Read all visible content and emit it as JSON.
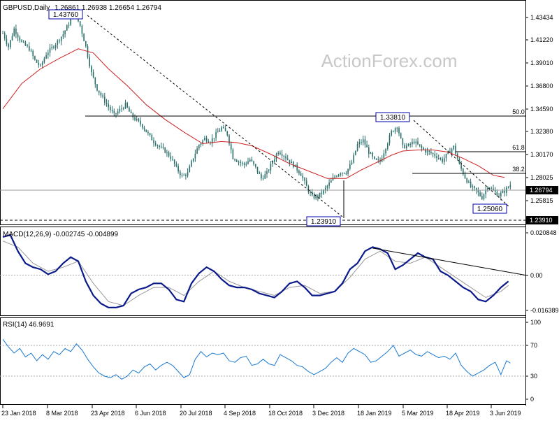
{
  "header": {
    "symbol": "GBPUSD,Daily",
    "ohlc": "1.26861 1.26938 1.26654 1.26794"
  },
  "watermark": "ActionForex.com",
  "chart_data": [
    {
      "type": "candlestick",
      "x_dates": [
        "23 Jan 2018",
        "8 Mar 2018",
        "23 Apr 2018",
        "6 Jun 2018",
        "20 Jul 2018",
        "4 Sep 2018",
        "18 Oct 2018",
        "3 Dec 2018",
        "18 Jan 2019",
        "5 Mar 2019",
        "18 Apr 2019",
        "3 Jun 2019"
      ],
      "y_ticks": [
        "1.43434",
        "1.41220",
        "1.39010",
        "1.36800",
        "1.34590",
        "1.32380",
        "1.30170",
        "1.28025",
        "1.25815"
      ],
      "ylim": [
        1.237,
        1.448
      ],
      "current_price": "1.26794",
      "extra_price": "1.23910",
      "price_path": [
        [
          0,
          1.418
        ],
        [
          3,
          1.405
        ],
        [
          6,
          1.422
        ],
        [
          10,
          1.409
        ],
        [
          14,
          1.403
        ],
        [
          17,
          1.392
        ],
        [
          20,
          1.386
        ],
        [
          23,
          1.398
        ],
        [
          26,
          1.404
        ],
        [
          29,
          1.41
        ],
        [
          32,
          1.417
        ],
        [
          35,
          1.427
        ],
        [
          38,
          1.4376
        ],
        [
          41,
          1.425
        ],
        [
          44,
          1.405
        ],
        [
          47,
          1.38
        ],
        [
          50,
          1.365
        ],
        [
          53,
          1.356
        ],
        [
          56,
          1.348
        ],
        [
          59,
          1.34
        ],
        [
          62,
          1.345
        ],
        [
          65,
          1.35
        ],
        [
          68,
          1.34
        ],
        [
          71,
          1.335
        ],
        [
          74,
          1.33
        ],
        [
          77,
          1.322
        ],
        [
          80,
          1.315
        ],
        [
          83,
          1.31
        ],
        [
          86,
          1.306
        ],
        [
          89,
          1.3
        ],
        [
          92,
          1.29
        ],
        [
          95,
          1.282
        ],
        [
          98,
          1.285
        ],
        [
          101,
          1.3
        ],
        [
          104,
          1.312
        ],
        [
          107,
          1.318
        ],
        [
          110,
          1.315
        ],
        [
          113,
          1.322
        ],
        [
          116,
          1.328
        ],
        [
          119,
          1.322
        ],
        [
          122,
          1.3
        ],
        [
          125,
          1.296
        ],
        [
          128,
          1.293
        ],
        [
          131,
          1.298
        ],
        [
          134,
          1.29
        ],
        [
          137,
          1.28
        ],
        [
          140,
          1.285
        ],
        [
          143,
          1.296
        ],
        [
          146,
          1.306
        ],
        [
          149,
          1.302
        ],
        [
          152,
          1.296
        ],
        [
          155,
          1.291
        ],
        [
          158,
          1.284
        ],
        [
          161,
          1.272
        ],
        [
          164,
          1.262
        ],
        [
          167,
          1.263
        ],
        [
          170,
          1.268
        ],
        [
          173,
          1.275
        ],
        [
          176,
          1.282
        ],
        [
          179,
          1.286
        ],
        [
          182,
          1.286
        ],
        [
          185,
          1.295
        ],
        [
          188,
          1.312
        ],
        [
          191,
          1.316
        ],
        [
          194,
          1.305
        ],
        [
          197,
          1.297
        ],
        [
          200,
          1.296
        ],
        [
          203,
          1.31
        ],
        [
          206,
          1.324
        ],
        [
          209,
          1.33
        ],
        [
          212,
          1.31
        ],
        [
          215,
          1.311
        ],
        [
          218,
          1.315
        ],
        [
          221,
          1.31
        ],
        [
          224,
          1.306
        ],
        [
          227,
          1.304
        ],
        [
          230,
          1.301
        ],
        [
          233,
          1.297
        ],
        [
          236,
          1.304
        ],
        [
          239,
          1.31
        ],
        [
          242,
          1.293
        ],
        [
          245,
          1.281
        ],
        [
          248,
          1.272
        ],
        [
          251,
          1.268
        ],
        [
          254,
          1.262
        ],
        [
          257,
          1.273
        ],
        [
          260,
          1.268
        ],
        [
          263,
          1.264
        ],
        [
          266,
          1.268
        ],
        [
          269,
          1.274
        ]
      ],
      "ma_path": [
        [
          0,
          1.346
        ],
        [
          10,
          1.37
        ],
        [
          20,
          1.384
        ],
        [
          30,
          1.394
        ],
        [
          40,
          1.403
        ],
        [
          48,
          1.399
        ],
        [
          56,
          1.384
        ],
        [
          66,
          1.368
        ],
        [
          76,
          1.35
        ],
        [
          86,
          1.336
        ],
        [
          96,
          1.324
        ],
        [
          106,
          1.313
        ],
        [
          116,
          1.315
        ],
        [
          124,
          1.314
        ],
        [
          132,
          1.311
        ],
        [
          142,
          1.303
        ],
        [
          152,
          1.294
        ],
        [
          162,
          1.287
        ],
        [
          172,
          1.28
        ],
        [
          182,
          1.28
        ],
        [
          190,
          1.288
        ],
        [
          198,
          1.295
        ],
        [
          206,
          1.302
        ],
        [
          212,
          1.306
        ],
        [
          220,
          1.307
        ],
        [
          228,
          1.307
        ],
        [
          236,
          1.305
        ],
        [
          244,
          1.299
        ],
        [
          252,
          1.292
        ],
        [
          260,
          1.283
        ],
        [
          266,
          1.281
        ]
      ],
      "levels": [
        {
          "label": "1.43760"
        },
        {
          "label": "1.33810"
        },
        {
          "label": "1.25060"
        },
        {
          "label": "1.23910"
        }
      ],
      "fib_levels": [
        {
          "label": "50.0",
          "price": 1.338
        },
        {
          "label": "61.8",
          "price": 1.308
        },
        {
          "label": "38.2",
          "price": 1.285
        }
      ],
      "colors": {
        "candle": "#2a6e6a",
        "ma": "#cc2222",
        "trend": "#000000",
        "label_border": "#0000aa"
      }
    },
    {
      "type": "line",
      "title": "MACD(12,26,9) -0.002745 -0.004899",
      "y_ticks": [
        "0.020848",
        "0.00",
        "-0.016389"
      ],
      "ylim": [
        -0.0195,
        0.0235
      ],
      "macd_path": [
        [
          0,
          0.019
        ],
        [
          4,
          0.02
        ],
        [
          8,
          0.012
        ],
        [
          12,
          0.006
        ],
        [
          16,
          0.004
        ],
        [
          20,
          0.003
        ],
        [
          24,
          0.0005
        ],
        [
          28,
          0.002
        ],
        [
          32,
          0.006
        ],
        [
          36,
          0.009
        ],
        [
          40,
          0.007
        ],
        [
          44,
          -0.003
        ],
        [
          48,
          -0.01
        ],
        [
          52,
          -0.014
        ],
        [
          56,
          -0.016
        ],
        [
          60,
          -0.016
        ],
        [
          64,
          -0.015
        ],
        [
          68,
          -0.009
        ],
        [
          72,
          -0.007
        ],
        [
          76,
          -0.006
        ],
        [
          80,
          -0.004
        ],
        [
          84,
          -0.004
        ],
        [
          88,
          -0.007
        ],
        [
          92,
          -0.012
        ],
        [
          96,
          -0.013
        ],
        [
          100,
          -0.004
        ],
        [
          104,
          0.001
        ],
        [
          108,
          0.004
        ],
        [
          112,
          0.002
        ],
        [
          116,
          -0.002
        ],
        [
          120,
          -0.005
        ],
        [
          124,
          -0.006
        ],
        [
          128,
          -0.006
        ],
        [
          132,
          -0.007
        ],
        [
          136,
          -0.009
        ],
        [
          140,
          -0.01
        ],
        [
          144,
          -0.011
        ],
        [
          148,
          -0.008
        ],
        [
          152,
          -0.004
        ],
        [
          156,
          -0.003
        ],
        [
          160,
          -0.006
        ],
        [
          164,
          -0.01
        ],
        [
          168,
          -0.01
        ],
        [
          172,
          -0.009
        ],
        [
          176,
          -0.008
        ],
        [
          180,
          -0.004
        ],
        [
          184,
          0.003
        ],
        [
          188,
          0.006
        ],
        [
          192,
          0.012
        ],
        [
          196,
          0.014
        ],
        [
          200,
          0.013
        ],
        [
          204,
          0.011
        ],
        [
          208,
          0.003
        ],
        [
          212,
          0.005
        ],
        [
          216,
          0.008
        ],
        [
          220,
          0.011
        ],
        [
          224,
          0.009
        ],
        [
          228,
          0.008
        ],
        [
          232,
          0.002
        ],
        [
          236,
          0.0
        ],
        [
          240,
          -0.003
        ],
        [
          244,
          -0.006
        ],
        [
          248,
          -0.008
        ],
        [
          252,
          -0.012
        ],
        [
          256,
          -0.013
        ],
        [
          260,
          -0.01
        ],
        [
          264,
          -0.006
        ],
        [
          268,
          -0.003
        ]
      ],
      "signal_path": [
        [
          0,
          0.017
        ],
        [
          8,
          0.014
        ],
        [
          16,
          0.006
        ],
        [
          24,
          0.002
        ],
        [
          32,
          0.004
        ],
        [
          40,
          0.007
        ],
        [
          48,
          -0.004
        ],
        [
          56,
          -0.013
        ],
        [
          64,
          -0.015
        ],
        [
          72,
          -0.01
        ],
        [
          80,
          -0.006
        ],
        [
          88,
          -0.006
        ],
        [
          96,
          -0.01
        ],
        [
          104,
          -0.003
        ],
        [
          112,
          0.002
        ],
        [
          120,
          -0.003
        ],
        [
          128,
          -0.006
        ],
        [
          136,
          -0.008
        ],
        [
          144,
          -0.01
        ],
        [
          152,
          -0.006
        ],
        [
          160,
          -0.005
        ],
        [
          168,
          -0.009
        ],
        [
          176,
          -0.008
        ],
        [
          184,
          -0.001
        ],
        [
          192,
          0.008
        ],
        [
          200,
          0.012
        ],
        [
          208,
          0.007
        ],
        [
          216,
          0.006
        ],
        [
          224,
          0.009
        ],
        [
          232,
          0.004
        ],
        [
          240,
          -0.001
        ],
        [
          248,
          -0.006
        ],
        [
          256,
          -0.011
        ],
        [
          264,
          -0.008
        ],
        [
          268,
          -0.005
        ]
      ],
      "trend": [
        [
          196,
          0.0135
        ],
        [
          270,
          0.0
        ]
      ],
      "colors": {
        "macd": "#0a1a8a",
        "signal": "#999999"
      }
    },
    {
      "type": "line",
      "title": "RSI(14) 46.9691",
      "y_ticks": [
        "100",
        "70",
        "30",
        "0"
      ],
      "ylim": [
        0,
        100
      ],
      "levels": [
        70,
        30
      ],
      "rsi_path": [
        [
          0,
          78
        ],
        [
          3,
          68
        ],
        [
          6,
          60
        ],
        [
          9,
          66
        ],
        [
          12,
          55
        ],
        [
          15,
          60
        ],
        [
          18,
          50
        ],
        [
          21,
          58
        ],
        [
          24,
          52
        ],
        [
          27,
          62
        ],
        [
          30,
          58
        ],
        [
          33,
          66
        ],
        [
          36,
          62
        ],
        [
          39,
          72
        ],
        [
          42,
          64
        ],
        [
          45,
          52
        ],
        [
          48,
          42
        ],
        [
          51,
          34
        ],
        [
          54,
          30
        ],
        [
          57,
          28
        ],
        [
          60,
          32
        ],
        [
          63,
          26
        ],
        [
          66,
          30
        ],
        [
          69,
          38
        ],
        [
          72,
          34
        ],
        [
          75,
          42
        ],
        [
          78,
          46
        ],
        [
          81,
          38
        ],
        [
          84,
          44
        ],
        [
          87,
          48
        ],
        [
          90,
          44
        ],
        [
          93,
          36
        ],
        [
          96,
          28
        ],
        [
          99,
          32
        ],
        [
          102,
          52
        ],
        [
          105,
          62
        ],
        [
          108,
          55
        ],
        [
          111,
          60
        ],
        [
          114,
          58
        ],
        [
          117,
          60
        ],
        [
          120,
          50
        ],
        [
          123,
          48
        ],
        [
          126,
          54
        ],
        [
          129,
          56
        ],
        [
          132,
          44
        ],
        [
          135,
          46
        ],
        [
          138,
          52
        ],
        [
          141,
          46
        ],
        [
          144,
          44
        ],
        [
          147,
          58
        ],
        [
          150,
          54
        ],
        [
          153,
          50
        ],
        [
          156,
          44
        ],
        [
          159,
          42
        ],
        [
          162,
          36
        ],
        [
          165,
          32
        ],
        [
          168,
          36
        ],
        [
          171,
          40
        ],
        [
          174,
          48
        ],
        [
          177,
          54
        ],
        [
          180,
          48
        ],
        [
          183,
          60
        ],
        [
          186,
          66
        ],
        [
          189,
          62
        ],
        [
          192,
          58
        ],
        [
          195,
          48
        ],
        [
          198,
          50
        ],
        [
          201,
          56
        ],
        [
          204,
          62
        ],
        [
          207,
          70
        ],
        [
          210,
          56
        ],
        [
          213,
          60
        ],
        [
          216,
          64
        ],
        [
          219,
          58
        ],
        [
          222,
          56
        ],
        [
          225,
          62
        ],
        [
          228,
          58
        ],
        [
          231,
          54
        ],
        [
          234,
          56
        ],
        [
          237,
          52
        ],
        [
          240,
          60
        ],
        [
          243,
          44
        ],
        [
          246,
          36
        ],
        [
          249,
          30
        ],
        [
          252,
          34
        ],
        [
          255,
          38
        ],
        [
          258,
          44
        ],
        [
          261,
          48
        ],
        [
          264,
          32
        ],
        [
          267,
          50
        ],
        [
          269,
          47
        ]
      ],
      "colors": {
        "rsi": "#1a7ad0"
      }
    }
  ]
}
